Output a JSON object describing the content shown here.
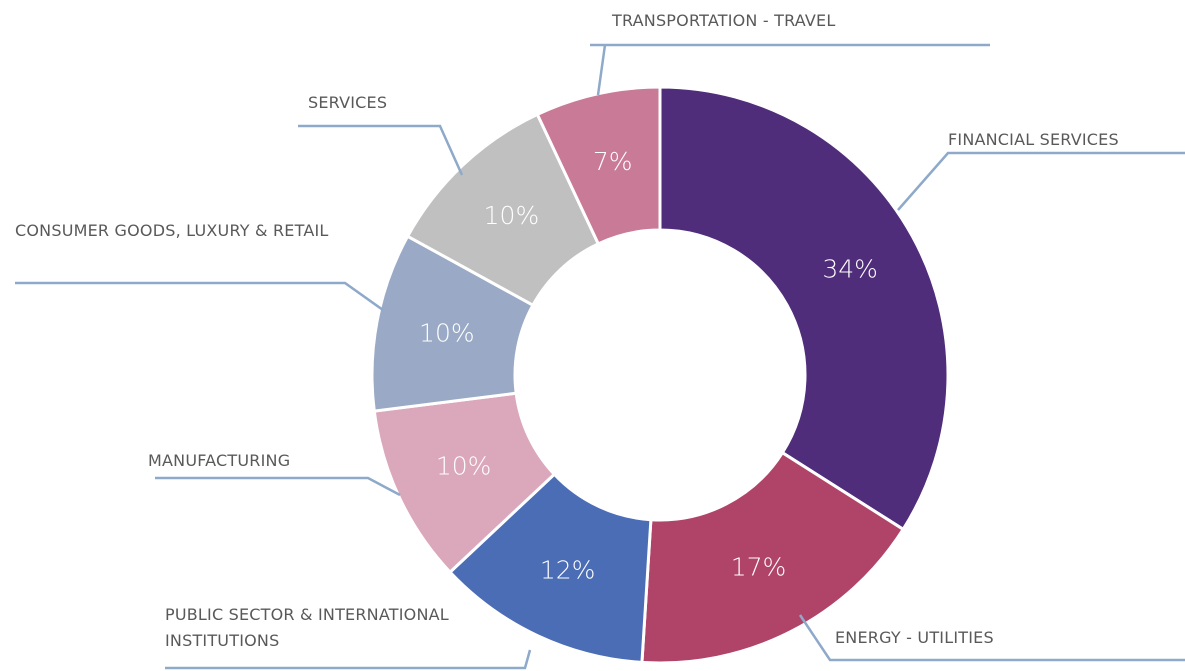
{
  "chart_data": {
    "type": "donut",
    "categories": [
      "FINANCIAL SERVICES",
      "ENERGY - UTILITIES",
      "PUBLIC SECTOR & INTERNATIONAL INSTITUTIONS",
      "MANUFACTURING",
      "CONSUMER GOODS, LUXURY & RETAIL",
      "SERVICES",
      "TRANSPORTATION - TRAVEL"
    ],
    "values": [
      34,
      17,
      12,
      10,
      10,
      10,
      7
    ],
    "value_labels": [
      "34%",
      "17%",
      "12%",
      "10%",
      "10%",
      "10%",
      "7%"
    ],
    "colors": [
      "#4f2d7a",
      "#b04468",
      "#4a6db5",
      "#dba7ba",
      "#9aaac6",
      "#c0c0c0",
      "#c97a96"
    ]
  }
}
